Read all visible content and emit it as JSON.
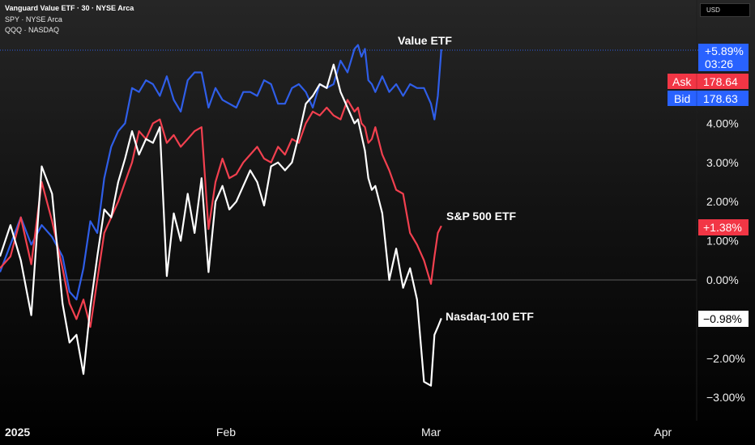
{
  "header": {
    "title": "Vanguard Value ETF · 30 · NYSE Arca",
    "compare_1": "SPY · NYSE Arca",
    "compare_2": "QQQ · NASDAQ",
    "currency": "USD"
  },
  "quote": {
    "change": "+5.89%",
    "countdown": "03:26",
    "ask_label": "Ask",
    "ask_value": "178.64",
    "bid_label": "Bid",
    "bid_value": "178.63"
  },
  "colors": {
    "value": "#2f5ee8",
    "sp500": "#f2404f",
    "nasdaq": "#ffffff",
    "bid_bg": "#2962ff",
    "ask_bg": "#f23645"
  },
  "chart_data": {
    "type": "line",
    "y_unit": "%",
    "ylim": [
      -3.2,
      6.6
    ],
    "y_ticks": [
      "4.00%",
      "3.00%",
      "2.00%",
      "1.00%",
      "0.00%",
      "−2.00%",
      "−3.00%"
    ],
    "y_tick_values": [
      4,
      3,
      2,
      1,
      0,
      -2,
      -3
    ],
    "x_ticks": [
      "2025",
      "Feb",
      "Mar",
      "Apr"
    ],
    "x_tick_positions": [
      0,
      0.325,
      0.62,
      0.955
    ],
    "series": [
      {
        "name": "Value ETF",
        "end_label": "+5.89%",
        "x": [
          0,
          0.015,
          0.03,
          0.045,
          0.06,
          0.075,
          0.09,
          0.1,
          0.11,
          0.12,
          0.13,
          0.14,
          0.15,
          0.16,
          0.17,
          0.18,
          0.19,
          0.2,
          0.21,
          0.22,
          0.23,
          0.24,
          0.25,
          0.26,
          0.27,
          0.28,
          0.29,
          0.3,
          0.31,
          0.32,
          0.33,
          0.34,
          0.35,
          0.36,
          0.37,
          0.38,
          0.39,
          0.4,
          0.41,
          0.42,
          0.43,
          0.44,
          0.45,
          0.46,
          0.47,
          0.48,
          0.49,
          0.5,
          0.51,
          0.515,
          0.52,
          0.525,
          0.53,
          0.535,
          0.54,
          0.55,
          0.56,
          0.57,
          0.58,
          0.59,
          0.6,
          0.61,
          0.62,
          0.625,
          0.63,
          0.635
        ],
        "values": [
          0.2,
          0.9,
          1.6,
          0.9,
          1.4,
          1.1,
          0.6,
          -0.3,
          -0.5,
          0.3,
          1.5,
          1.2,
          2.6,
          3.4,
          3.8,
          4.0,
          4.9,
          4.8,
          5.1,
          5.0,
          4.7,
          5.2,
          4.6,
          4.3,
          5.1,
          5.3,
          5.3,
          4.4,
          4.9,
          4.6,
          4.5,
          4.4,
          4.8,
          4.8,
          4.7,
          5.1,
          5.0,
          4.5,
          4.5,
          4.9,
          5.0,
          4.8,
          4.4,
          5.0,
          4.9,
          5.0,
          5.6,
          5.3,
          5.9,
          6.0,
          5.7,
          5.9,
          5.1,
          5.0,
          4.8,
          5.2,
          4.8,
          5.0,
          4.7,
          5.0,
          4.9,
          4.9,
          4.5,
          4.1,
          4.7,
          5.89
        ]
      },
      {
        "name": "S&P 500 ETF",
        "end_label": "+1.38%",
        "x": [
          0,
          0.015,
          0.03,
          0.045,
          0.06,
          0.075,
          0.09,
          0.1,
          0.11,
          0.12,
          0.13,
          0.14,
          0.15,
          0.16,
          0.17,
          0.18,
          0.19,
          0.2,
          0.21,
          0.22,
          0.23,
          0.24,
          0.25,
          0.26,
          0.27,
          0.28,
          0.29,
          0.3,
          0.31,
          0.32,
          0.33,
          0.34,
          0.35,
          0.36,
          0.37,
          0.38,
          0.39,
          0.4,
          0.41,
          0.42,
          0.43,
          0.44,
          0.45,
          0.46,
          0.47,
          0.48,
          0.49,
          0.5,
          0.51,
          0.515,
          0.52,
          0.525,
          0.53,
          0.535,
          0.54,
          0.55,
          0.56,
          0.57,
          0.58,
          0.59,
          0.6,
          0.61,
          0.62,
          0.625,
          0.63,
          0.635
        ],
        "values": [
          0.3,
          0.6,
          1.6,
          0.4,
          2.5,
          1.5,
          0.3,
          -0.6,
          -1.0,
          -0.5,
          -1.2,
          0.0,
          1.2,
          1.6,
          2.0,
          2.5,
          3.0,
          3.8,
          3.6,
          4.0,
          4.1,
          3.5,
          3.7,
          3.4,
          3.6,
          3.8,
          3.9,
          1.3,
          2.5,
          3.1,
          2.6,
          2.7,
          3.0,
          3.2,
          3.4,
          3.1,
          3.0,
          3.4,
          3.2,
          3.6,
          3.5,
          4.0,
          4.3,
          4.2,
          4.4,
          4.2,
          4.1,
          4.6,
          4.3,
          4.4,
          4.0,
          3.9,
          3.5,
          3.6,
          3.9,
          3.2,
          2.8,
          2.3,
          2.2,
          1.2,
          0.9,
          0.5,
          -0.1,
          0.6,
          1.2,
          1.38
        ]
      },
      {
        "name": "Nasdaq-100 ETF",
        "end_label": "−0.98%",
        "x": [
          0,
          0.015,
          0.03,
          0.045,
          0.06,
          0.075,
          0.09,
          0.1,
          0.11,
          0.12,
          0.13,
          0.14,
          0.15,
          0.16,
          0.17,
          0.18,
          0.19,
          0.2,
          0.21,
          0.22,
          0.23,
          0.24,
          0.25,
          0.26,
          0.27,
          0.28,
          0.29,
          0.3,
          0.31,
          0.32,
          0.33,
          0.34,
          0.35,
          0.36,
          0.37,
          0.38,
          0.39,
          0.4,
          0.41,
          0.42,
          0.43,
          0.44,
          0.45,
          0.46,
          0.47,
          0.48,
          0.49,
          0.5,
          0.51,
          0.515,
          0.52,
          0.525,
          0.53,
          0.535,
          0.54,
          0.55,
          0.56,
          0.57,
          0.58,
          0.59,
          0.6,
          0.61,
          0.62,
          0.625,
          0.63,
          0.635
        ],
        "values": [
          0.6,
          1.4,
          0.5,
          -0.9,
          2.9,
          2.2,
          -0.6,
          -1.6,
          -1.4,
          -2.4,
          -0.7,
          0.6,
          1.8,
          1.6,
          2.5,
          3.1,
          3.8,
          3.2,
          3.6,
          3.5,
          3.9,
          0.1,
          1.7,
          1.0,
          2.2,
          1.2,
          2.6,
          0.2,
          2.0,
          2.4,
          1.8,
          2.0,
          2.4,
          2.8,
          2.5,
          1.9,
          2.9,
          3.0,
          2.8,
          3.0,
          3.7,
          4.5,
          4.7,
          5.0,
          4.9,
          5.5,
          4.8,
          4.4,
          4.0,
          4.1,
          3.7,
          3.3,
          2.6,
          2.3,
          2.4,
          1.7,
          0.0,
          0.8,
          -0.2,
          0.3,
          -0.5,
          -2.6,
          -2.7,
          -1.4,
          -1.2,
          -0.98
        ]
      }
    ],
    "grid": false,
    "legend": "top-left"
  }
}
